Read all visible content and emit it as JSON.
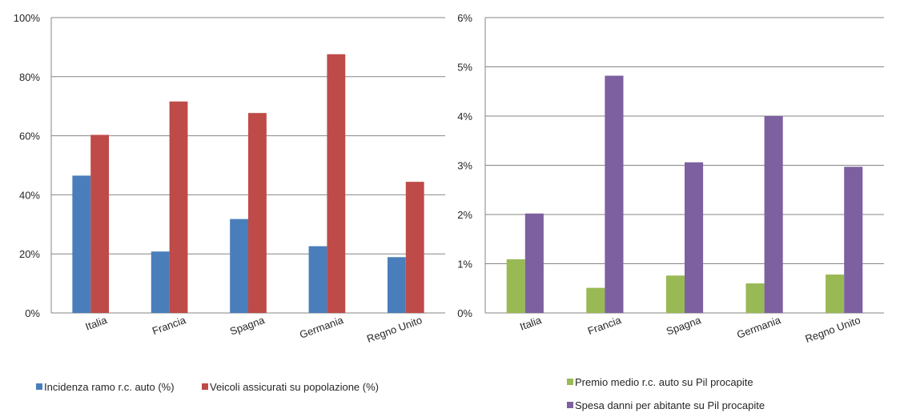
{
  "chart_data": [
    {
      "type": "bar",
      "categories": [
        "Italia",
        "Francia",
        "Spagna",
        "Germania",
        "Regno Unito"
      ],
      "ylim": [
        0,
        100
      ],
      "yticks": [
        "0%",
        "20%",
        "40%",
        "60%",
        "80%",
        "100%"
      ],
      "grid": true,
      "legend_position": "bottom",
      "series": [
        {
          "name": "Incidenza ramo r.c. auto (%)",
          "color": "#4a7ebb",
          "values": [
            46.5,
            20.8,
            31.8,
            22.6,
            18.9
          ]
        },
        {
          "name": "Veicoli assicurati su popolazione (%)",
          "color": "#be4b48",
          "values": [
            60.3,
            71.6,
            67.7,
            87.6,
            44.4
          ]
        }
      ]
    },
    {
      "type": "bar",
      "categories": [
        "Italia",
        "Francia",
        "Spagna",
        "Germania",
        "Regno Unito"
      ],
      "ylim": [
        0,
        6
      ],
      "yticks": [
        "0%",
        "1%",
        "2%",
        "3%",
        "4%",
        "5%",
        "6%"
      ],
      "grid": true,
      "legend_position": "bottom",
      "series": [
        {
          "name": "Premio medio r.c. auto su Pil procapite",
          "color": "#98b954",
          "values": [
            1.09,
            0.51,
            0.76,
            0.6,
            0.78
          ]
        },
        {
          "name": "Spesa danni per abitante su Pil procapite",
          "color": "#7d60a0",
          "values": [
            2.02,
            4.82,
            3.06,
            4.0,
            2.97
          ]
        }
      ]
    }
  ]
}
